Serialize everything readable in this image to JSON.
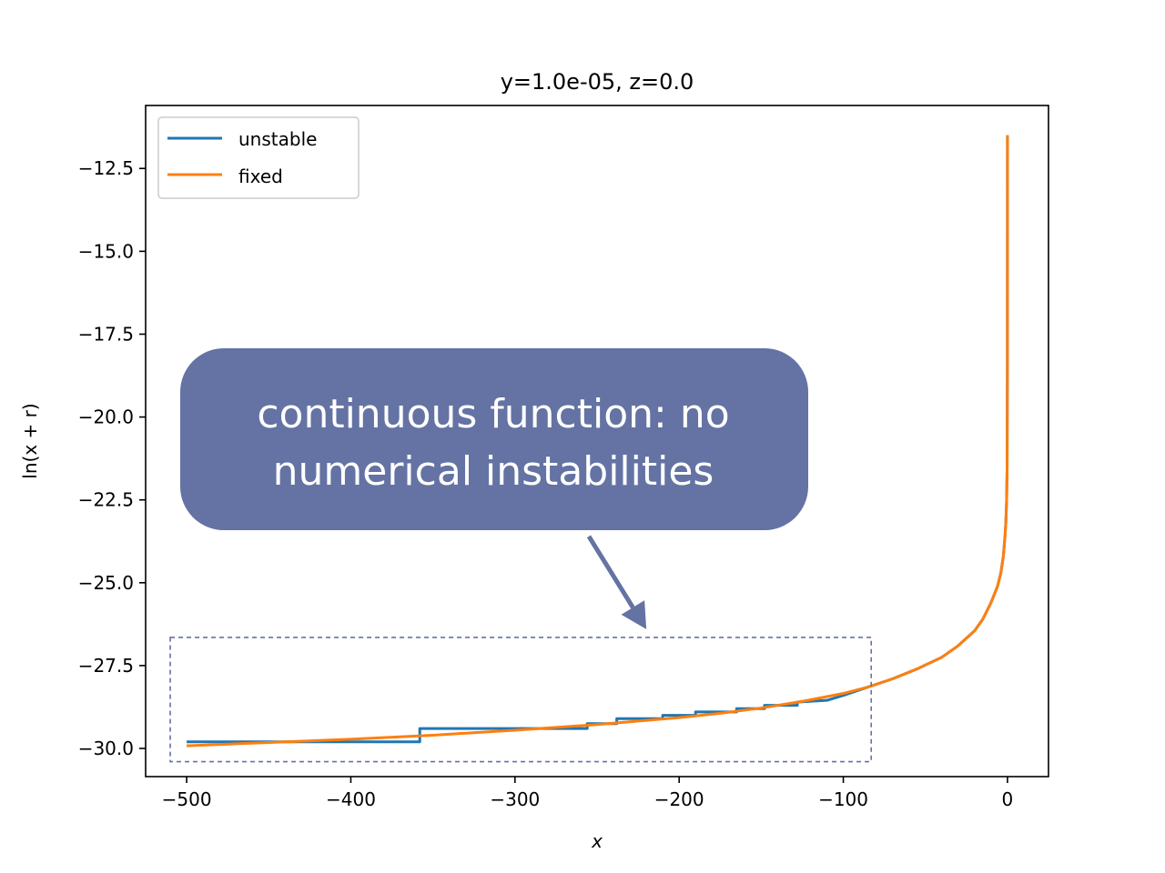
{
  "chart_data": {
    "type": "line",
    "title": "y=1.0e-05, z=0.0",
    "xlabel": "x",
    "ylabel": "ln(x + r)",
    "xlim": [
      -525,
      25
    ],
    "ylim": [
      -30.85,
      -10.6
    ],
    "x_ticks": [
      -500,
      -400,
      -300,
      -200,
      -100,
      0
    ],
    "x_tick_labels": [
      "−500",
      "−400",
      "−300",
      "−200",
      "−100",
      "0"
    ],
    "y_ticks": [
      -30.0,
      -27.5,
      -25.0,
      -22.5,
      -20.0,
      -17.5,
      -15.0,
      -12.5
    ],
    "y_tick_labels": [
      "−30.0",
      "−27.5",
      "−25.0",
      "−22.5",
      "−20.0",
      "−17.5",
      "−15.0",
      "−12.5"
    ],
    "grid": false,
    "legend_position": "top-left",
    "series": [
      {
        "name": "unstable",
        "color": "#1f77b4",
        "points": [
          [
            -500,
            -29.8
          ],
          [
            -358,
            -29.8
          ],
          [
            -358,
            -29.4
          ],
          [
            -256,
            -29.4
          ],
          [
            -256,
            -29.25
          ],
          [
            -238,
            -29.25
          ],
          [
            -238,
            -29.1
          ],
          [
            -210,
            -29.1
          ],
          [
            -210,
            -29.0
          ],
          [
            -190,
            -29.0
          ],
          [
            -190,
            -28.9
          ],
          [
            -165,
            -28.9
          ],
          [
            -165,
            -28.8
          ],
          [
            -148,
            -28.8
          ],
          [
            -148,
            -28.7
          ],
          [
            -128,
            -28.7
          ],
          [
            -128,
            -28.6
          ],
          [
            -110,
            -28.55
          ],
          [
            -100,
            -28.4
          ],
          [
            -85,
            -28.15
          ],
          [
            -70,
            -27.9
          ],
          [
            -55,
            -27.6
          ],
          [
            -40,
            -27.25
          ],
          [
            -30,
            -26.9
          ],
          [
            -20,
            -26.45
          ],
          [
            -15,
            -26.1
          ],
          [
            -10,
            -25.6
          ],
          [
            -6,
            -25.1
          ],
          [
            -4,
            -24.7
          ],
          [
            -2.5,
            -24.2
          ],
          [
            -1.5,
            -23.6
          ],
          [
            -1,
            -23.2
          ],
          [
            -0.5,
            -22.5
          ],
          [
            -0.2,
            -21.5
          ],
          [
            -0.05,
            -18.5
          ],
          [
            0,
            -11.5
          ]
        ]
      },
      {
        "name": "fixed",
        "color": "#ff7f0e",
        "points": [
          [
            -500,
            -29.92
          ],
          [
            -450,
            -29.82
          ],
          [
            -400,
            -29.72
          ],
          [
            -350,
            -29.6
          ],
          [
            -300,
            -29.45
          ],
          [
            -250,
            -29.28
          ],
          [
            -200,
            -29.07
          ],
          [
            -175,
            -28.94
          ],
          [
            -150,
            -28.78
          ],
          [
            -125,
            -28.58
          ],
          [
            -100,
            -28.34
          ],
          [
            -85,
            -28.15
          ],
          [
            -70,
            -27.9
          ],
          [
            -55,
            -27.6
          ],
          [
            -40,
            -27.25
          ],
          [
            -30,
            -26.9
          ],
          [
            -20,
            -26.45
          ],
          [
            -15,
            -26.1
          ],
          [
            -10,
            -25.6
          ],
          [
            -6,
            -25.1
          ],
          [
            -4,
            -24.7
          ],
          [
            -2.5,
            -24.2
          ],
          [
            -1.5,
            -23.6
          ],
          [
            -1,
            -23.2
          ],
          [
            -0.5,
            -22.5
          ],
          [
            -0.2,
            -21.5
          ],
          [
            -0.05,
            -18.5
          ],
          [
            0,
            -11.5
          ]
        ]
      }
    ],
    "annotation": {
      "lines": [
        "continuous function: no",
        "numerical instabilities"
      ],
      "box_color": "#6473a3",
      "highlight_region": {
        "x": [
          -510,
          -83
        ],
        "y": [
          -30.4,
          -26.65
        ]
      },
      "arrow_from": [
        -255,
        -23.6
      ],
      "arrow_to": [
        -220,
        -26.4
      ]
    }
  }
}
